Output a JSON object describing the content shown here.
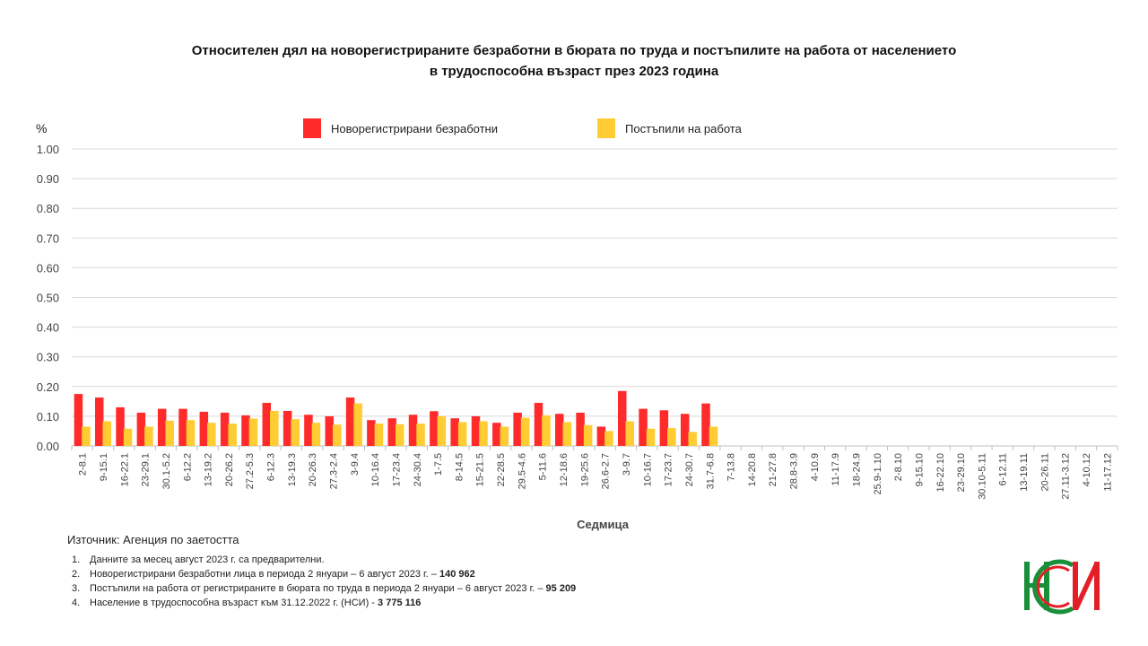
{
  "title_lines": [
    "Относителен дял на новорегистрираните безработни в бюрата по труда и постъпилите на работа от населението",
    "в трудоспособна възраст през 2023 година"
  ],
  "source": "Източник: Агенция по заетостта",
  "notes": [
    {
      "num": "1.",
      "text": "Данните за месец август 2023 г. са предварителни.",
      "bold": ""
    },
    {
      "num": "2.",
      "text": "Новорегистрирани безработни лица в периода  2 януари – 6 август 2023 г. – ",
      "bold": "140 962"
    },
    {
      "num": "3.",
      "text": "Постъпили на работа от регистрираните в бюрата по труда в периода  2 януари – 6 август 2023 г. – ",
      "bold": "95 209"
    },
    {
      "num": "4.",
      "text": "Население в трудоспособна възраст към 31.12.2022 г. (НСИ)   - ",
      "bold": "3 775 116"
    }
  ],
  "logo": {
    "text": "НСИ",
    "colors": [
      "#1a8f3a",
      "#e41e26"
    ]
  },
  "chart_data": {
    "type": "bar",
    "ylabel": "%",
    "xlabel": "Седмица",
    "ylim": [
      0,
      1.0
    ],
    "yticks": [
      "0.00",
      "0.10",
      "0.20",
      "0.30",
      "0.40",
      "0.50",
      "0.60",
      "0.70",
      "0.80",
      "0.90",
      "1.00"
    ],
    "grid": true,
    "legend_position": "top-center",
    "categories": [
      "2-8.1",
      "9-15.1",
      "16-22.1",
      "23-29.1",
      "30.1-5.2",
      "6-12.2",
      "13-19.2",
      "20-26.2",
      "27.2-5.3",
      "6-12.3",
      "13-19.3",
      "20-26.3",
      "27.3-2.4",
      "3-9.4",
      "10-16.4",
      "17-23.4",
      "24-30.4",
      "1-7.5",
      "8-14.5",
      "15-21.5",
      "22-28.5",
      "29.5-4.6",
      "5-11.6",
      "12-18.6",
      "19-25.6",
      "26.6-2.7",
      "3-9.7",
      "10-16.7",
      "17-23.7",
      "24-30.7",
      "31.7-6.8",
      "7-13.8",
      "14-20.8",
      "21-27.8",
      "28.8-3.9",
      "4-10.9",
      "11-17.9",
      "18-24.9",
      "25.9-1.10",
      "2-8.10",
      "9-15.10",
      "16-22.10",
      "23-29.10",
      "30.10-5.11",
      "6-12.11",
      "13-19.11",
      "20-26.11",
      "27.11-3.12",
      "4-10.12",
      "11-17.12"
    ],
    "series": [
      {
        "name": "Новорегистрирани безработни",
        "color": "#ff2b2b",
        "values": [
          0.175,
          0.163,
          0.13,
          0.112,
          0.125,
          0.125,
          0.115,
          0.112,
          0.103,
          0.145,
          0.118,
          0.105,
          0.1,
          0.163,
          0.087,
          0.093,
          0.105,
          0.117,
          0.093,
          0.1,
          0.078,
          0.112,
          0.145,
          0.108,
          0.112,
          0.065,
          0.185,
          0.125,
          0.12,
          0.108,
          0.143,
          null,
          null,
          null,
          null,
          null,
          null,
          null,
          null,
          null,
          null,
          null,
          null,
          null,
          null,
          null,
          null,
          null,
          null,
          null
        ]
      },
      {
        "name": "Постъпили на работа",
        "color": "#ffcc33",
        "values": [
          0.065,
          0.083,
          0.058,
          0.065,
          0.085,
          0.087,
          0.078,
          0.075,
          0.092,
          0.118,
          0.09,
          0.078,
          0.072,
          0.143,
          0.075,
          0.073,
          0.075,
          0.1,
          0.08,
          0.083,
          0.065,
          0.095,
          0.103,
          0.08,
          0.07,
          0.05,
          0.083,
          0.058,
          0.06,
          0.047,
          0.065,
          null,
          null,
          null,
          null,
          null,
          null,
          null,
          null,
          null,
          null,
          null,
          null,
          null,
          null,
          null,
          null,
          null,
          null,
          null
        ]
      }
    ]
  }
}
